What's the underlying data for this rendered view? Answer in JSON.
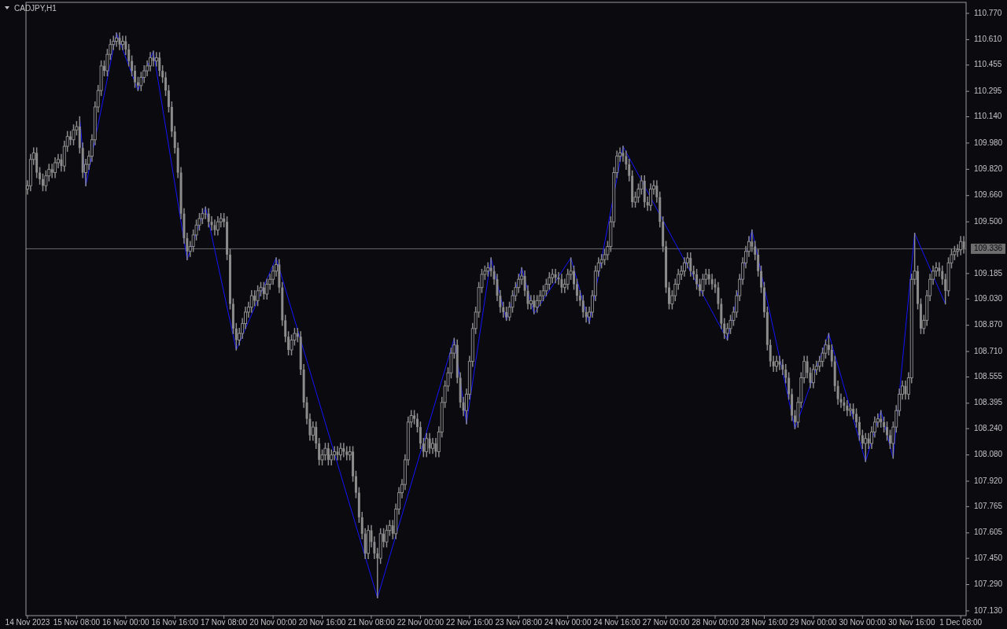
{
  "chart_data": {
    "type": "candlestick",
    "title": "CADJPY,H1",
    "color": "#8c8c8c",
    "grid": false,
    "ylim": [
      107.101,
      110.837
    ],
    "yticks": [
      {
        "value": 110.77,
        "label": "110.770"
      },
      {
        "value": 110.61,
        "label": "110.610"
      },
      {
        "value": 110.455,
        "label": "110.455"
      },
      {
        "value": 110.295,
        "label": "110.295"
      },
      {
        "value": 110.14,
        "label": "110.140"
      },
      {
        "value": 109.98,
        "label": "109.980"
      },
      {
        "value": 109.82,
        "label": "109.820"
      },
      {
        "value": 109.66,
        "label": "109.660"
      },
      {
        "value": 109.5,
        "label": "109.500"
      },
      {
        "value": 109.185,
        "label": "109.185"
      },
      {
        "value": 109.03,
        "label": "109.030"
      },
      {
        "value": 108.87,
        "label": "108.870"
      },
      {
        "value": 108.71,
        "label": "108.710"
      },
      {
        "value": 108.555,
        "label": "108.555"
      },
      {
        "value": 108.395,
        "label": "108.395"
      },
      {
        "value": 108.24,
        "label": "108.240"
      },
      {
        "value": 108.08,
        "label": "108.080"
      },
      {
        "value": 107.92,
        "label": "107.920"
      },
      {
        "value": 107.765,
        "label": "107.765"
      },
      {
        "value": 107.605,
        "label": "107.605"
      },
      {
        "value": 107.45,
        "label": "107.450"
      },
      {
        "value": 107.29,
        "label": "107.290"
      },
      {
        "value": 107.13,
        "label": "107.130"
      }
    ],
    "ref_lines": [
      {
        "axis": "y",
        "value": 109.336,
        "label": "109.336",
        "color": "#6e6e6e"
      }
    ],
    "categories": [
      "14 Nov 2023",
      null,
      null,
      null,
      null,
      null,
      null,
      null,
      null,
      null,
      null,
      null,
      null,
      null,
      null,
      null,
      "15 Nov 08:00",
      null,
      null,
      null,
      null,
      null,
      null,
      null,
      null,
      null,
      null,
      null,
      null,
      null,
      null,
      null,
      "16 Nov 00:00",
      null,
      null,
      null,
      null,
      null,
      null,
      null,
      null,
      null,
      null,
      null,
      null,
      null,
      null,
      null,
      "16 Nov 16:00",
      null,
      null,
      null,
      null,
      null,
      null,
      null,
      null,
      null,
      null,
      null,
      null,
      null,
      null,
      null,
      "17 Nov 08:00",
      null,
      null,
      null,
      null,
      null,
      null,
      null,
      null,
      null,
      null,
      null,
      null,
      null,
      null,
      null,
      "20 Nov 00:00",
      null,
      null,
      null,
      null,
      null,
      null,
      null,
      null,
      null,
      null,
      null,
      null,
      null,
      null,
      null,
      "20 Nov 16:00",
      null,
      null,
      null,
      null,
      null,
      null,
      null,
      null,
      null,
      null,
      null,
      null,
      null,
      null,
      null,
      "21 Nov 08:00",
      null,
      null,
      null,
      null,
      null,
      null,
      null,
      null,
      null,
      null,
      null,
      null,
      null,
      null,
      null,
      "22 Nov 00:00",
      null,
      null,
      null,
      null,
      null,
      null,
      null,
      null,
      null,
      null,
      null,
      null,
      null,
      null,
      null,
      "22 Nov 16:00",
      null,
      null,
      null,
      null,
      null,
      null,
      null,
      null,
      null,
      null,
      null,
      null,
      null,
      null,
      null,
      "23 Nov 08:00",
      null,
      null,
      null,
      null,
      null,
      null,
      null,
      null,
      null,
      null,
      null,
      null,
      null,
      null,
      null,
      "24 Nov 00:00",
      null,
      null,
      null,
      null,
      null,
      null,
      null,
      null,
      null,
      null,
      null,
      null,
      null,
      null,
      null,
      "24 Nov 16:00",
      null,
      null,
      null,
      null,
      null,
      null,
      null,
      null,
      null,
      null,
      null,
      null,
      null,
      null,
      null,
      "27 Nov 00:00",
      null,
      null,
      null,
      null,
      null,
      null,
      null,
      null,
      null,
      null,
      null,
      null,
      null,
      null,
      null,
      "28 Nov 00:00",
      null,
      null,
      null,
      null,
      null,
      null,
      null,
      null,
      null,
      null,
      null,
      null,
      null,
      null,
      null,
      "28 Nov 16:00",
      null,
      null,
      null,
      null,
      null,
      null,
      null,
      null,
      null,
      null,
      null,
      null,
      null,
      null,
      null,
      "29 Nov 00:00",
      null,
      null,
      null,
      null,
      null,
      null,
      null,
      null,
      null,
      null,
      null,
      null,
      null,
      null,
      null,
      "30 Nov 00:00",
      null,
      null,
      null,
      null,
      null,
      null,
      null,
      null,
      null,
      null,
      null,
      null,
      null,
      null,
      null,
      "30 Nov 16:00",
      null,
      null,
      null,
      null,
      null,
      null,
      null,
      null,
      null,
      null,
      null,
      null,
      null,
      null,
      null,
      "1 Dec 08:00",
      null
    ],
    "ohlc": [
      [
        109.7,
        109.75,
        109.67,
        109.72
      ],
      [
        109.72,
        109.91,
        109.69,
        109.88
      ],
      [
        109.88,
        109.95,
        109.85,
        109.92
      ],
      [
        109.92,
        109.95,
        109.77,
        109.8
      ],
      [
        109.8,
        109.83,
        109.73,
        109.76
      ],
      [
        109.76,
        109.79,
        109.69,
        109.72
      ],
      [
        109.72,
        109.81,
        109.69,
        109.78
      ],
      [
        109.78,
        109.85,
        109.75,
        109.82
      ],
      [
        109.82,
        109.85,
        109.77,
        109.8
      ],
      [
        109.8,
        109.89,
        109.77,
        109.86
      ],
      [
        109.86,
        109.91,
        109.83,
        109.88
      ],
      [
        109.88,
        109.91,
        109.81,
        109.84
      ],
      [
        109.84,
        109.99,
        109.81,
        109.96
      ],
      [
        109.96,
        110.05,
        109.93,
        110.02
      ],
      [
        110.02,
        110.05,
        109.97,
        110.0
      ],
      [
        110.0,
        110.09,
        109.97,
        110.06
      ],
      [
        110.06,
        110.11,
        110.03,
        110.08
      ],
      [
        110.08,
        110.14,
        109.92,
        109.95
      ],
      [
        109.95,
        109.98,
        109.77,
        109.8
      ],
      [
        109.8,
        109.88,
        109.72,
        109.85
      ],
      [
        109.85,
        109.93,
        109.82,
        109.9
      ],
      [
        109.9,
        110.03,
        109.87,
        110.0
      ],
      [
        110.0,
        110.23,
        109.97,
        110.2
      ],
      [
        110.2,
        110.33,
        110.17,
        110.3
      ],
      [
        110.3,
        110.48,
        110.27,
        110.45
      ],
      [
        110.45,
        110.48,
        110.39,
        110.42
      ],
      [
        110.42,
        110.55,
        110.39,
        110.52
      ],
      [
        110.52,
        110.61,
        110.49,
        110.58
      ],
      [
        110.58,
        110.63,
        110.55,
        110.6
      ],
      [
        110.6,
        110.65,
        110.57,
        110.62
      ],
      [
        110.62,
        110.65,
        110.55,
        110.58
      ],
      [
        110.58,
        110.63,
        110.55,
        110.6
      ],
      [
        110.6,
        110.63,
        110.52,
        110.55
      ],
      [
        110.55,
        110.58,
        110.45,
        110.48
      ],
      [
        110.48,
        110.51,
        110.39,
        110.42
      ],
      [
        110.42,
        110.45,
        110.32,
        110.35
      ],
      [
        110.35,
        110.38,
        110.3,
        110.33
      ],
      [
        110.33,
        110.41,
        110.3,
        110.38
      ],
      [
        110.38,
        110.45,
        110.35,
        110.42
      ],
      [
        110.42,
        110.48,
        110.39,
        110.45
      ],
      [
        110.45,
        110.53,
        110.42,
        110.5
      ],
      [
        110.5,
        110.54,
        110.45,
        110.48
      ],
      [
        110.48,
        110.53,
        110.45,
        110.5
      ],
      [
        110.5,
        110.53,
        110.39,
        110.42
      ],
      [
        110.42,
        110.45,
        110.35,
        110.38
      ],
      [
        110.38,
        110.41,
        110.27,
        110.3
      ],
      [
        110.3,
        110.33,
        110.17,
        110.2
      ],
      [
        110.2,
        110.23,
        110.02,
        110.05
      ],
      [
        110.05,
        110.08,
        109.92,
        109.95
      ],
      [
        109.95,
        109.98,
        109.77,
        109.8
      ],
      [
        109.8,
        109.83,
        109.52,
        109.55
      ],
      [
        109.55,
        109.58,
        109.37,
        109.4
      ],
      [
        109.4,
        109.43,
        109.27,
        109.32
      ],
      [
        109.32,
        109.38,
        109.29,
        109.35
      ],
      [
        109.35,
        109.45,
        109.32,
        109.42
      ],
      [
        109.42,
        109.51,
        109.39,
        109.48
      ],
      [
        109.48,
        109.55,
        109.45,
        109.52
      ],
      [
        109.52,
        109.58,
        109.49,
        109.55
      ],
      [
        109.55,
        109.59,
        109.52,
        109.55
      ],
      [
        109.55,
        109.58,
        109.47,
        109.5
      ],
      [
        109.5,
        109.53,
        109.45,
        109.48
      ],
      [
        109.48,
        109.51,
        109.42,
        109.45
      ],
      [
        109.45,
        109.53,
        109.42,
        109.5
      ],
      [
        109.5,
        109.55,
        109.47,
        109.52
      ],
      [
        109.52,
        109.55,
        109.47,
        109.5
      ],
      [
        109.5,
        109.53,
        109.27,
        109.3
      ],
      [
        109.3,
        109.33,
        108.97,
        109.0
      ],
      [
        109.0,
        109.03,
        108.82,
        108.85
      ],
      [
        108.85,
        108.88,
        108.72,
        108.78
      ],
      [
        108.78,
        108.85,
        108.75,
        108.82
      ],
      [
        108.82,
        108.91,
        108.79,
        108.88
      ],
      [
        108.88,
        108.98,
        108.85,
        108.95
      ],
      [
        108.95,
        109.01,
        108.92,
        108.98
      ],
      [
        108.98,
        109.08,
        108.95,
        109.05
      ],
      [
        109.05,
        109.08,
        108.99,
        109.02
      ],
      [
        109.02,
        109.11,
        108.99,
        109.08
      ],
      [
        109.08,
        109.13,
        109.05,
        109.1
      ],
      [
        109.1,
        109.13,
        109.03,
        109.06
      ],
      [
        109.06,
        109.15,
        109.03,
        109.12
      ],
      [
        109.12,
        109.18,
        109.09,
        109.15
      ],
      [
        109.15,
        109.23,
        109.12,
        109.2
      ],
      [
        109.2,
        109.28,
        109.17,
        109.24
      ],
      [
        109.24,
        109.27,
        109.07,
        109.1
      ],
      [
        109.1,
        109.13,
        108.87,
        108.9
      ],
      [
        108.9,
        108.93,
        108.77,
        108.8
      ],
      [
        108.8,
        108.83,
        108.69,
        108.72
      ],
      [
        108.72,
        108.81,
        108.69,
        108.78
      ],
      [
        108.78,
        108.85,
        108.75,
        108.82
      ],
      [
        108.82,
        108.85,
        108.77,
        108.8
      ],
      [
        108.8,
        108.83,
        108.57,
        108.6
      ],
      [
        108.6,
        108.63,
        108.37,
        108.4
      ],
      [
        108.4,
        108.43,
        108.27,
        108.3
      ],
      [
        108.3,
        108.33,
        108.17,
        108.2
      ],
      [
        108.2,
        108.28,
        108.17,
        108.25
      ],
      [
        108.25,
        108.28,
        108.12,
        108.15
      ],
      [
        108.15,
        108.18,
        108.02,
        108.05
      ],
      [
        108.05,
        108.11,
        108.02,
        108.08
      ],
      [
        108.08,
        108.15,
        108.05,
        108.12
      ],
      [
        108.12,
        108.15,
        108.02,
        108.05
      ],
      [
        108.05,
        108.11,
        108.02,
        108.08
      ],
      [
        108.08,
        108.13,
        108.05,
        108.1
      ],
      [
        108.1,
        108.13,
        108.05,
        108.08
      ],
      [
        108.08,
        108.15,
        108.05,
        108.12
      ],
      [
        108.12,
        108.15,
        108.07,
        108.1
      ],
      [
        108.1,
        108.13,
        108.05,
        108.08
      ],
      [
        108.08,
        108.13,
        108.05,
        108.1
      ],
      [
        108.1,
        108.13,
        107.92,
        107.95
      ],
      [
        107.95,
        107.98,
        107.82,
        107.85
      ],
      [
        107.85,
        107.88,
        107.67,
        107.7
      ],
      [
        107.7,
        107.73,
        107.57,
        107.6
      ],
      [
        107.6,
        107.63,
        107.45,
        107.48
      ],
      [
        107.48,
        107.65,
        107.45,
        107.62
      ],
      [
        107.62,
        107.65,
        107.52,
        107.55
      ],
      [
        107.55,
        107.58,
        107.45,
        107.48
      ],
      [
        107.48,
        107.51,
        107.21,
        107.45
      ],
      [
        107.45,
        107.63,
        107.42,
        107.6
      ],
      [
        107.6,
        107.63,
        107.52,
        107.55
      ],
      [
        107.55,
        107.65,
        107.52,
        107.62
      ],
      [
        107.62,
        107.68,
        107.59,
        107.65
      ],
      [
        107.65,
        107.68,
        107.57,
        107.6
      ],
      [
        107.6,
        107.78,
        107.57,
        107.75
      ],
      [
        107.75,
        107.88,
        107.72,
        107.85
      ],
      [
        107.85,
        107.93,
        107.82,
        107.9
      ],
      [
        107.9,
        108.08,
        107.87,
        108.05
      ],
      [
        108.05,
        108.31,
        108.02,
        108.28
      ],
      [
        108.28,
        108.35,
        108.25,
        108.32
      ],
      [
        108.32,
        108.35,
        108.27,
        108.3
      ],
      [
        108.3,
        108.33,
        108.22,
        108.25
      ],
      [
        108.25,
        108.28,
        108.12,
        108.15
      ],
      [
        108.15,
        108.18,
        108.07,
        108.1
      ],
      [
        108.1,
        108.21,
        108.07,
        108.18
      ],
      [
        108.18,
        108.21,
        108.09,
        108.12
      ],
      [
        108.12,
        108.18,
        108.09,
        108.15
      ],
      [
        108.15,
        108.18,
        108.07,
        108.1
      ],
      [
        108.1,
        108.25,
        108.07,
        108.22
      ],
      [
        108.22,
        108.43,
        108.19,
        108.4
      ],
      [
        108.4,
        108.53,
        108.37,
        108.5
      ],
      [
        108.5,
        108.61,
        108.47,
        108.58
      ],
      [
        108.58,
        108.73,
        108.55,
        108.7
      ],
      [
        108.7,
        108.79,
        108.67,
        108.75
      ],
      [
        108.75,
        108.78,
        108.52,
        108.55
      ],
      [
        108.55,
        108.58,
        108.37,
        108.4
      ],
      [
        108.4,
        108.43,
        108.32,
        108.35
      ],
      [
        108.35,
        108.48,
        108.27,
        108.45
      ],
      [
        108.45,
        108.68,
        108.42,
        108.65
      ],
      [
        108.65,
        108.88,
        108.62,
        108.85
      ],
      [
        108.85,
        108.98,
        108.82,
        108.95
      ],
      [
        108.95,
        109.13,
        108.92,
        109.1
      ],
      [
        109.1,
        109.21,
        109.07,
        109.18
      ],
      [
        109.18,
        109.23,
        109.15,
        109.2
      ],
      [
        109.2,
        109.25,
        109.17,
        109.22
      ],
      [
        109.22,
        109.28,
        109.17,
        109.2
      ],
      [
        109.2,
        109.23,
        109.12,
        109.15
      ],
      [
        109.15,
        109.18,
        109.02,
        109.05
      ],
      [
        109.05,
        109.08,
        108.95,
        108.98
      ],
      [
        108.98,
        109.01,
        108.92,
        108.95
      ],
      [
        108.95,
        108.98,
        108.9,
        108.92
      ],
      [
        108.92,
        109.01,
        108.9,
        108.98
      ],
      [
        108.98,
        109.08,
        108.95,
        109.05
      ],
      [
        109.05,
        109.13,
        109.02,
        109.1
      ],
      [
        109.1,
        109.18,
        109.07,
        109.15
      ],
      [
        109.15,
        109.22,
        109.12,
        109.17
      ],
      [
        109.17,
        109.2,
        109.05,
        109.08
      ],
      [
        109.08,
        109.11,
        108.97,
        109.0
      ],
      [
        109.0,
        109.05,
        108.97,
        109.02
      ],
      [
        109.02,
        109.05,
        108.94,
        108.98
      ],
      [
        108.98,
        109.05,
        108.95,
        109.02
      ],
      [
        109.02,
        109.08,
        108.99,
        109.05
      ],
      [
        109.05,
        109.11,
        109.02,
        109.08
      ],
      [
        109.08,
        109.15,
        109.05,
        109.12
      ],
      [
        109.12,
        109.19,
        109.09,
        109.16
      ],
      [
        109.16,
        109.21,
        109.13,
        109.18
      ],
      [
        109.18,
        109.21,
        109.13,
        109.16
      ],
      [
        109.16,
        109.19,
        109.12,
        109.15
      ],
      [
        109.15,
        109.18,
        109.07,
        109.1
      ],
      [
        109.1,
        109.15,
        109.07,
        109.12
      ],
      [
        109.12,
        109.21,
        109.09,
        109.18
      ],
      [
        109.18,
        109.28,
        109.15,
        109.2
      ],
      [
        109.2,
        109.23,
        109.09,
        109.12
      ],
      [
        109.12,
        109.15,
        109.02,
        109.05
      ],
      [
        109.05,
        109.08,
        108.99,
        109.02
      ],
      [
        109.02,
        109.05,
        108.92,
        108.95
      ],
      [
        108.95,
        108.98,
        108.89,
        108.92
      ],
      [
        108.92,
        108.98,
        108.88,
        108.95
      ],
      [
        108.95,
        109.08,
        108.92,
        109.05
      ],
      [
        109.05,
        109.23,
        109.02,
        109.2
      ],
      [
        109.2,
        109.28,
        109.17,
        109.25
      ],
      [
        109.25,
        109.3,
        109.22,
        109.27
      ],
      [
        109.27,
        109.33,
        109.24,
        109.3
      ],
      [
        109.3,
        109.38,
        109.27,
        109.35
      ],
      [
        109.35,
        109.53,
        109.32,
        109.5
      ],
      [
        109.5,
        109.83,
        109.47,
        109.8
      ],
      [
        109.8,
        109.93,
        109.77,
        109.9
      ],
      [
        109.9,
        109.95,
        109.87,
        109.92
      ],
      [
        109.92,
        109.96,
        109.87,
        109.9
      ],
      [
        109.9,
        109.93,
        109.82,
        109.85
      ],
      [
        109.85,
        109.88,
        109.75,
        109.78
      ],
      [
        109.78,
        109.81,
        109.59,
        109.62
      ],
      [
        109.62,
        109.68,
        109.59,
        109.65
      ],
      [
        109.65,
        109.73,
        109.62,
        109.7
      ],
      [
        109.7,
        109.78,
        109.67,
        109.75
      ],
      [
        109.75,
        109.78,
        109.59,
        109.62
      ],
      [
        109.62,
        109.65,
        109.57,
        109.6
      ],
      [
        109.6,
        109.73,
        109.57,
        109.7
      ],
      [
        109.7,
        109.75,
        109.67,
        109.72
      ],
      [
        109.72,
        109.75,
        109.62,
        109.65
      ],
      [
        109.65,
        109.68,
        109.47,
        109.5
      ],
      [
        109.5,
        109.53,
        109.32,
        109.35
      ],
      [
        109.35,
        109.38,
        109.07,
        109.1
      ],
      [
        109.1,
        109.13,
        108.97,
        109.0
      ],
      [
        109.0,
        109.08,
        108.97,
        109.05
      ],
      [
        109.05,
        109.15,
        109.02,
        109.12
      ],
      [
        109.12,
        109.21,
        109.09,
        109.18
      ],
      [
        109.18,
        109.23,
        109.15,
        109.2
      ],
      [
        109.2,
        109.28,
        109.17,
        109.25
      ],
      [
        109.25,
        109.31,
        109.22,
        109.28
      ],
      [
        109.28,
        109.31,
        109.17,
        109.2
      ],
      [
        109.2,
        109.23,
        109.15,
        109.18
      ],
      [
        109.18,
        109.21,
        109.09,
        109.12
      ],
      [
        109.12,
        109.15,
        109.05,
        109.08
      ],
      [
        109.08,
        109.18,
        109.05,
        109.15
      ],
      [
        109.15,
        109.21,
        109.12,
        109.18
      ],
      [
        109.18,
        109.21,
        109.12,
        109.15
      ],
      [
        109.15,
        109.18,
        109.09,
        109.12
      ],
      [
        109.12,
        109.15,
        109.07,
        109.1
      ],
      [
        109.1,
        109.13,
        108.97,
        109.0
      ],
      [
        109.0,
        109.03,
        108.85,
        108.88
      ],
      [
        108.88,
        108.91,
        108.79,
        108.82
      ],
      [
        108.82,
        108.88,
        108.78,
        108.85
      ],
      [
        108.85,
        108.93,
        108.82,
        108.9
      ],
      [
        108.9,
        108.98,
        108.87,
        108.95
      ],
      [
        108.95,
        109.08,
        108.92,
        109.05
      ],
      [
        109.05,
        109.18,
        109.02,
        109.15
      ],
      [
        109.15,
        109.28,
        109.12,
        109.25
      ],
      [
        109.25,
        109.35,
        109.22,
        109.32
      ],
      [
        109.32,
        109.41,
        109.29,
        109.38
      ],
      [
        109.38,
        109.45,
        109.32,
        109.35
      ],
      [
        109.35,
        109.38,
        109.27,
        109.3
      ],
      [
        109.3,
        109.33,
        109.17,
        109.2
      ],
      [
        109.2,
        109.23,
        109.07,
        109.1
      ],
      [
        109.1,
        109.13,
        108.92,
        108.95
      ],
      [
        108.95,
        108.98,
        108.72,
        108.75
      ],
      [
        108.75,
        108.78,
        108.62,
        108.65
      ],
      [
        108.65,
        108.68,
        108.59,
        108.62
      ],
      [
        108.62,
        108.68,
        108.59,
        108.65
      ],
      [
        108.65,
        108.68,
        108.6,
        108.63
      ],
      [
        108.63,
        108.66,
        108.57,
        108.6
      ],
      [
        108.6,
        108.63,
        108.52,
        108.55
      ],
      [
        108.55,
        108.58,
        108.42,
        108.45
      ],
      [
        108.45,
        108.48,
        108.29,
        108.32
      ],
      [
        108.32,
        108.35,
        108.24,
        108.28
      ],
      [
        108.28,
        108.43,
        108.25,
        108.4
      ],
      [
        108.4,
        108.58,
        108.37,
        108.55
      ],
      [
        108.55,
        108.68,
        108.52,
        108.65
      ],
      [
        108.65,
        108.68,
        108.55,
        108.58
      ],
      [
        108.58,
        108.61,
        108.49,
        108.52
      ],
      [
        108.52,
        108.63,
        108.49,
        108.6
      ],
      [
        108.6,
        108.65,
        108.57,
        108.62
      ],
      [
        108.62,
        108.68,
        108.59,
        108.65
      ],
      [
        108.65,
        108.73,
        108.62,
        108.7
      ],
      [
        108.7,
        108.78,
        108.67,
        108.75
      ],
      [
        108.75,
        108.82,
        108.69,
        108.72
      ],
      [
        108.72,
        108.75,
        108.62,
        108.65
      ],
      [
        108.65,
        108.68,
        108.47,
        108.5
      ],
      [
        108.5,
        108.53,
        108.39,
        108.42
      ],
      [
        108.42,
        108.45,
        108.37,
        108.4
      ],
      [
        108.4,
        108.43,
        108.35,
        108.38
      ],
      [
        108.38,
        108.41,
        108.32,
        108.35
      ],
      [
        108.35,
        108.39,
        108.32,
        108.36
      ],
      [
        108.36,
        108.39,
        108.3,
        108.33
      ],
      [
        108.33,
        108.36,
        108.25,
        108.28
      ],
      [
        108.28,
        108.31,
        108.17,
        108.2
      ],
      [
        108.2,
        108.23,
        108.12,
        108.15
      ],
      [
        108.15,
        108.21,
        108.04,
        108.18
      ],
      [
        108.18,
        108.21,
        108.12,
        108.15
      ],
      [
        108.15,
        108.25,
        108.12,
        108.22
      ],
      [
        108.22,
        108.31,
        108.19,
        108.28
      ],
      [
        108.28,
        108.33,
        108.25,
        108.3
      ],
      [
        108.3,
        108.35,
        108.25,
        108.28
      ],
      [
        108.28,
        108.31,
        108.22,
        108.25
      ],
      [
        108.25,
        108.28,
        108.17,
        108.2
      ],
      [
        108.2,
        108.23,
        108.12,
        108.15
      ],
      [
        108.15,
        108.28,
        108.06,
        108.25
      ],
      [
        108.25,
        108.38,
        108.22,
        108.35
      ],
      [
        108.35,
        108.48,
        108.32,
        108.45
      ],
      [
        108.45,
        108.53,
        108.42,
        108.5
      ],
      [
        108.5,
        108.53,
        108.42,
        108.45
      ],
      [
        108.45,
        108.58,
        108.42,
        108.55
      ],
      [
        108.55,
        109.18,
        108.52,
        109.15
      ],
      [
        109.15,
        109.43,
        109.12,
        109.2
      ],
      [
        109.2,
        109.23,
        108.97,
        109.0
      ],
      [
        109.0,
        109.03,
        108.82,
        108.85
      ],
      [
        108.85,
        108.93,
        108.82,
        108.9
      ],
      [
        108.9,
        109.08,
        108.87,
        109.05
      ],
      [
        109.05,
        109.18,
        109.02,
        109.15
      ],
      [
        109.15,
        109.23,
        109.12,
        109.2
      ],
      [
        109.2,
        109.25,
        109.17,
        109.22
      ],
      [
        109.22,
        109.25,
        109.17,
        109.2
      ],
      [
        109.2,
        109.23,
        109.12,
        109.15
      ],
      [
        109.15,
        109.18,
        109.0,
        109.08
      ],
      [
        109.08,
        109.28,
        109.05,
        109.25
      ],
      [
        109.25,
        109.33,
        109.22,
        109.3
      ],
      [
        109.3,
        109.35,
        109.27,
        109.32
      ],
      [
        109.32,
        109.36,
        109.29,
        109.33
      ],
      [
        109.33,
        109.41,
        109.3,
        109.38
      ],
      [
        109.38,
        109.41,
        109.31,
        109.34
      ]
    ],
    "series": [
      {
        "type": "line",
        "color": "#1414ff",
        "line_style": "solid",
        "marker": "none",
        "values": [
          null,
          null,
          null,
          null,
          null,
          null,
          null,
          null,
          null,
          null,
          null,
          null,
          null,
          null,
          null,
          null,
          null,
          110.14,
          null,
          109.72,
          null,
          null,
          null,
          null,
          null,
          null,
          null,
          null,
          null,
          110.65,
          null,
          null,
          null,
          null,
          null,
          null,
          110.3,
          null,
          null,
          null,
          null,
          110.54,
          null,
          null,
          null,
          null,
          null,
          null,
          null,
          null,
          null,
          null,
          109.27,
          null,
          null,
          null,
          null,
          null,
          109.59,
          null,
          null,
          null,
          null,
          null,
          null,
          null,
          null,
          null,
          108.72,
          null,
          null,
          null,
          null,
          null,
          null,
          null,
          null,
          null,
          null,
          null,
          null,
          109.28,
          null,
          null,
          null,
          null,
          null,
          null,
          null,
          null,
          null,
          null,
          null,
          null,
          null,
          null,
          null,
          null,
          null,
          null,
          null,
          null,
          null,
          null,
          null,
          null,
          null,
          null,
          null,
          null,
          null,
          null,
          null,
          null,
          107.21,
          null,
          null,
          null,
          null,
          null,
          null,
          null,
          null,
          null,
          null,
          null,
          null,
          null,
          null,
          null,
          null,
          null,
          null,
          null,
          null,
          null,
          null,
          null,
          null,
          108.79,
          null,
          null,
          null,
          108.27,
          null,
          null,
          null,
          null,
          null,
          null,
          null,
          109.28,
          null,
          null,
          null,
          null,
          108.9,
          null,
          null,
          null,
          null,
          109.22,
          null,
          null,
          null,
          108.94,
          null,
          null,
          null,
          null,
          null,
          null,
          null,
          null,
          null,
          null,
          null,
          109.28,
          null,
          null,
          null,
          null,
          null,
          108.88,
          null,
          null,
          null,
          null,
          null,
          null,
          null,
          null,
          null,
          null,
          109.96,
          null,
          null,
          null,
          null,
          null,
          null,
          null,
          null,
          null,
          null,
          null,
          null,
          null,
          null,
          null,
          null,
          null,
          null,
          null,
          null,
          null,
          null,
          null,
          null,
          null,
          null,
          null,
          null,
          null,
          null,
          null,
          null,
          null,
          108.78,
          null,
          null,
          null,
          null,
          null,
          null,
          null,
          109.45,
          null,
          null,
          null,
          null,
          null,
          null,
          null,
          null,
          null,
          null,
          null,
          null,
          null,
          108.24,
          null,
          null,
          null,
          null,
          null,
          null,
          null,
          null,
          null,
          null,
          108.82,
          null,
          null,
          null,
          null,
          null,
          null,
          null,
          null,
          null,
          null,
          null,
          108.04,
          null,
          null,
          null,
          null,
          108.35,
          null,
          null,
          null,
          108.06,
          null,
          null,
          null,
          null,
          null,
          null,
          109.43,
          null,
          null,
          null,
          null,
          null,
          null,
          null,
          null,
          null,
          109.0,
          null,
          null,
          null,
          null,
          null,
          null
        ]
      }
    ]
  }
}
